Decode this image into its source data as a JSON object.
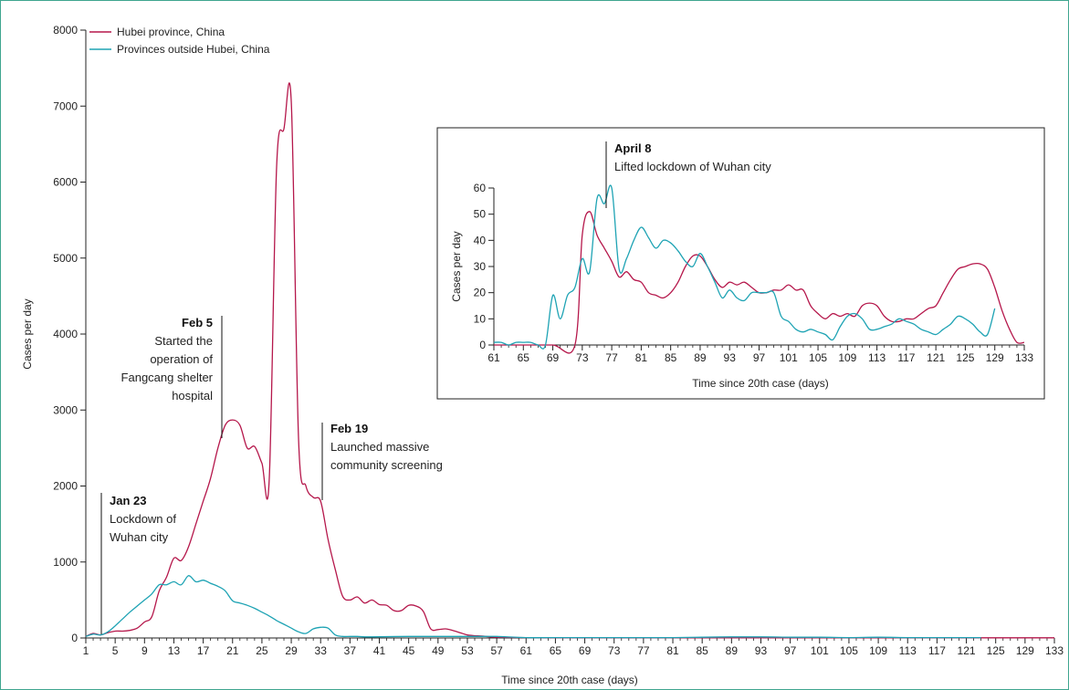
{
  "colors": {
    "hubei": "#b5174b",
    "outside": "#1ea3b4",
    "frame": "#3fa58f"
  },
  "legend": [
    {
      "label": "Hubei province, China",
      "color": "#b5174b"
    },
    {
      "label": "Provinces outside Hubei, China",
      "color": "#1ea3b4"
    }
  ],
  "annotations": [
    {
      "date": "Jan 23",
      "lines": [
        "Lockdown of",
        "Wuhan city"
      ]
    },
    {
      "date": "Feb 5",
      "lines": [
        "Started the",
        "operation of",
        "Fangcang shelter",
        "hospital"
      ]
    },
    {
      "date": "Feb 19",
      "lines": [
        "Launched massive",
        "community screening"
      ]
    }
  ],
  "inset_annotation": {
    "date": "April 8",
    "lines": [
      "Lifted lockdown of Wuhan city"
    ]
  },
  "chart_data": [
    {
      "type": "line",
      "xlabel": "Time since 20th case (days)",
      "ylabel": "Cases per day",
      "xlim": [
        1,
        133
      ],
      "ylim": [
        0,
        8000
      ],
      "xticks": [
        1,
        5,
        9,
        13,
        17,
        21,
        25,
        29,
        33,
        37,
        41,
        45,
        49,
        53,
        57,
        61,
        65,
        69,
        73,
        77,
        81,
        85,
        89,
        93,
        97,
        101,
        105,
        109,
        113,
        117,
        121,
        125,
        129,
        133
      ],
      "yticks": [
        0,
        1000,
        2000,
        3000,
        4000,
        5000,
        6000,
        7000,
        8000
      ],
      "legend_position": "top-left",
      "series": [
        {
          "name": "Hubei province, China",
          "x": [
            1,
            2,
            3,
            4,
            5,
            6,
            7,
            8,
            9,
            10,
            11,
            12,
            13,
            14,
            15,
            16,
            17,
            18,
            19,
            20,
            21,
            22,
            23,
            24,
            25,
            26,
            27,
            28,
            29,
            30,
            31,
            32,
            33,
            34,
            35,
            36,
            37,
            38,
            39,
            40,
            41,
            42,
            43,
            44,
            45,
            46,
            47,
            48,
            49,
            50,
            51,
            52,
            53,
            54,
            55,
            57,
            61,
            65,
            69,
            73,
            77,
            81,
            85,
            89,
            93,
            97,
            101,
            105,
            109,
            113,
            117,
            121,
            125,
            129,
            133
          ],
          "y": [
            20,
            60,
            40,
            70,
            90,
            90,
            100,
            130,
            210,
            280,
            620,
            800,
            1050,
            1020,
            1200,
            1500,
            1800,
            2100,
            2500,
            2800,
            2870,
            2800,
            2500,
            2520,
            2300,
            2080,
            6200,
            6700,
            7050,
            2600,
            2000,
            1850,
            1800,
            1300,
            900,
            550,
            500,
            540,
            460,
            500,
            440,
            430,
            360,
            360,
            430,
            420,
            350,
            120,
            110,
            120,
            100,
            70,
            40,
            30,
            25,
            10,
            5,
            3,
            2,
            2,
            2,
            2,
            2,
            2,
            2,
            2,
            2,
            2,
            2,
            2,
            2,
            2,
            2,
            2,
            2
          ]
        },
        {
          "name": "Provinces outside Hubei, China",
          "x": [
            1,
            2,
            3,
            4,
            5,
            6,
            7,
            8,
            9,
            10,
            11,
            12,
            13,
            14,
            15,
            16,
            17,
            18,
            19,
            20,
            21,
            22,
            23,
            24,
            25,
            26,
            27,
            28,
            29,
            30,
            31,
            32,
            33,
            34,
            35,
            36,
            37,
            38,
            39,
            40,
            45,
            50,
            55,
            57,
            61,
            65,
            69,
            73,
            77,
            81,
            85,
            89,
            93,
            97,
            101,
            105,
            109,
            113,
            117,
            121,
            123
          ],
          "y": [
            20,
            50,
            40,
            80,
            160,
            250,
            340,
            420,
            500,
            580,
            700,
            700,
            740,
            700,
            820,
            740,
            760,
            720,
            680,
            620,
            490,
            460,
            430,
            390,
            340,
            290,
            230,
            180,
            130,
            80,
            60,
            120,
            140,
            130,
            40,
            20,
            20,
            20,
            15,
            15,
            20,
            20,
            20,
            20,
            5,
            5,
            5,
            5,
            5,
            5,
            10,
            15,
            15,
            10,
            10,
            5,
            10,
            5,
            5,
            5,
            5
          ]
        }
      ]
    },
    {
      "type": "line",
      "xlabel": "Time since 20th case (days)",
      "ylabel": "Cases per day",
      "xlim": [
        61,
        133
      ],
      "ylim": [
        0,
        60
      ],
      "xticks": [
        61,
        65,
        69,
        73,
        77,
        81,
        85,
        89,
        93,
        97,
        101,
        105,
        109,
        113,
        117,
        121,
        125,
        129,
        133
      ],
      "yticks": [
        0,
        10,
        20,
        30,
        40,
        50,
        60
      ],
      "series": [
        {
          "name": "Hubei province, China",
          "x": [
            61,
            65,
            69,
            72,
            73,
            74,
            75,
            76,
            77,
            78,
            79,
            80,
            81,
            82,
            83,
            84,
            85,
            86,
            87,
            88,
            89,
            90,
            91,
            92,
            93,
            94,
            95,
            96,
            97,
            98,
            99,
            100,
            101,
            102,
            103,
            104,
            105,
            106,
            107,
            108,
            109,
            110,
            111,
            112,
            113,
            114,
            115,
            116,
            117,
            118,
            119,
            120,
            121,
            122,
            123,
            124,
            125,
            126,
            127,
            128,
            129,
            130,
            131,
            132,
            133
          ],
          "y": [
            0,
            0,
            0,
            0,
            42,
            51,
            42,
            37,
            32,
            26,
            28,
            25,
            24,
            20,
            19,
            18,
            20,
            24,
            30,
            34,
            34,
            30,
            25,
            22,
            24,
            23,
            24,
            22,
            20,
            20,
            21,
            21,
            23,
            21,
            21,
            15,
            12,
            10,
            12,
            11,
            12,
            11,
            15,
            16,
            15,
            11,
            9,
            9,
            10,
            10,
            12,
            14,
            15,
            20,
            25,
            29,
            30,
            31,
            31,
            29,
            22,
            13,
            6,
            1,
            1
          ]
        },
        {
          "name": "Provinces outside Hubei, China",
          "x": [
            61,
            62,
            63,
            64,
            65,
            66,
            67,
            68,
            69,
            70,
            71,
            72,
            73,
            74,
            75,
            76,
            77,
            78,
            79,
            80,
            81,
            82,
            83,
            84,
            85,
            86,
            87,
            88,
            89,
            90,
            91,
            92,
            93,
            94,
            95,
            96,
            97,
            98,
            99,
            100,
            101,
            102,
            103,
            104,
            105,
            106,
            107,
            108,
            109,
            110,
            111,
            112,
            113,
            114,
            115,
            116,
            117,
            118,
            119,
            120,
            121,
            122,
            123,
            124,
            125,
            126,
            127,
            128,
            129
          ],
          "y": [
            1,
            1,
            0,
            1,
            1,
            1,
            0,
            0,
            19,
            10,
            19,
            22,
            33,
            28,
            56,
            54,
            60,
            29,
            33,
            40,
            45,
            41,
            37,
            40,
            39,
            36,
            32,
            30,
            35,
            30,
            24,
            18,
            21,
            18,
            17,
            20,
            20,
            20,
            20,
            11,
            9,
            6,
            5,
            6,
            5,
            4,
            2,
            7,
            11,
            12,
            10,
            6,
            6,
            7,
            8,
            10,
            9,
            8,
            6,
            5,
            4,
            6,
            8,
            11,
            10,
            8,
            5,
            4,
            14
          ]
        }
      ]
    }
  ]
}
